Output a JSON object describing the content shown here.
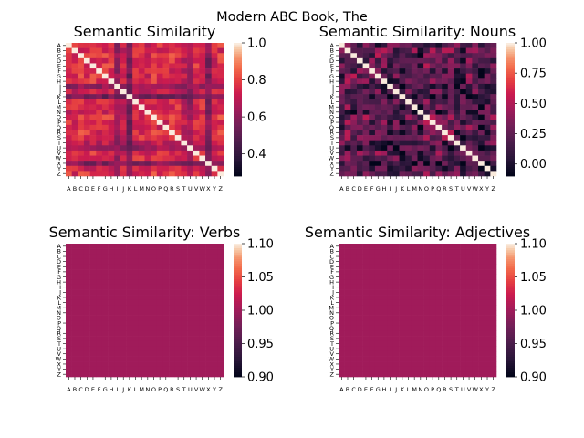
{
  "suptitle": "Modern ABC Book, The",
  "colors": {
    "colormap": "rocket",
    "background": "#ffffff",
    "diagonal": "#faebdd"
  },
  "chart_data": [
    {
      "type": "heatmap",
      "title": "Semantic Similarity",
      "xlabel": "",
      "ylabel": "",
      "x_tick_labels": [
        "A",
        "B",
        "C",
        "D",
        "E",
        "F",
        "G",
        "H",
        "I",
        "J",
        "K",
        "L",
        "M",
        "N",
        "O",
        "P",
        "Q",
        "R",
        "S",
        "T",
        "U",
        "V",
        "W",
        "X",
        "Y",
        "Z"
      ],
      "y_tick_labels": [
        "A",
        "B",
        "C",
        "D",
        "E",
        "F",
        "G",
        "H",
        "I",
        "J",
        "K",
        "L",
        "M",
        "N",
        "O",
        "P",
        "Q",
        "R",
        "S",
        "T",
        "U",
        "V",
        "W",
        "X",
        "Y",
        "Z"
      ],
      "colorbar_ticks": [
        "0.4",
        "0.6",
        "0.8",
        "1.0"
      ],
      "colorbar_tick_values": [
        0.4,
        0.6,
        0.8,
        1.0
      ],
      "vmin": 0.28,
      "vmax": 1.0,
      "diagonal_value": 1.0,
      "row_means": [
        0.78,
        0.74,
        0.8,
        0.77,
        0.79,
        0.75,
        0.8,
        0.78,
        0.62,
        0.72,
        0.55,
        0.77,
        0.76,
        0.73,
        0.8,
        0.77,
        0.74,
        0.79,
        0.76,
        0.7,
        0.63,
        0.78,
        0.76,
        0.58,
        0.74,
        0.8
      ],
      "grid": false,
      "legend": "colorbar-right"
    },
    {
      "type": "heatmap",
      "title": "Semantic Similarity: Nouns",
      "xlabel": "",
      "ylabel": "",
      "x_tick_labels": [
        "A",
        "B",
        "C",
        "D",
        "E",
        "F",
        "G",
        "H",
        "I",
        "J",
        "K",
        "L",
        "M",
        "N",
        "O",
        "P",
        "Q",
        "R",
        "S",
        "T",
        "U",
        "V",
        "W",
        "X",
        "Y",
        "Z"
      ],
      "y_tick_labels": [
        "A",
        "B",
        "C",
        "D",
        "E",
        "F",
        "G",
        "H",
        "I",
        "J",
        "K",
        "L",
        "M",
        "N",
        "O",
        "P",
        "Q",
        "R",
        "S",
        "T",
        "U",
        "V",
        "W",
        "X",
        "Y",
        "Z"
      ],
      "colorbar_ticks": [
        "0.00",
        "0.25",
        "0.50",
        "0.75",
        "1.00"
      ],
      "colorbar_tick_values": [
        0.0,
        0.25,
        0.5,
        0.75,
        1.0
      ],
      "vmin": -0.1,
      "vmax": 1.0,
      "diagonal_value": 1.0,
      "row_means": [
        0.2,
        0.3,
        0.35,
        0.28,
        0.4,
        0.25,
        0.33,
        0.3,
        0.15,
        0.22,
        0.1,
        0.3,
        0.25,
        0.12,
        0.38,
        0.3,
        0.28,
        0.35,
        0.3,
        0.18,
        0.12,
        0.3,
        0.28,
        0.08,
        0.2,
        0.3
      ],
      "grid": false,
      "legend": "colorbar-right"
    },
    {
      "type": "heatmap",
      "title": "Semantic Similarity: Verbs",
      "xlabel": "",
      "ylabel": "",
      "x_tick_labels": [
        "A",
        "B",
        "C",
        "D",
        "E",
        "F",
        "G",
        "H",
        "I",
        "J",
        "K",
        "L",
        "M",
        "N",
        "O",
        "P",
        "Q",
        "R",
        "S",
        "T",
        "U",
        "V",
        "W",
        "X",
        "Y",
        "Z"
      ],
      "y_tick_labels": [
        "A",
        "B",
        "C",
        "D",
        "E",
        "F",
        "G",
        "H",
        "I",
        "J",
        "K",
        "L",
        "M",
        "N",
        "O",
        "P",
        "Q",
        "R",
        "S",
        "T",
        "U",
        "V",
        "W",
        "X",
        "Y",
        "Z"
      ],
      "colorbar_ticks": [
        "0.90",
        "0.95",
        "1.00",
        "1.05",
        "1.10"
      ],
      "colorbar_tick_values": [
        0.9,
        0.95,
        1.0,
        1.05,
        1.1
      ],
      "vmin": 0.9,
      "vmax": 1.1,
      "uniform_value": 1.0,
      "grid": false,
      "legend": "colorbar-right"
    },
    {
      "type": "heatmap",
      "title": "Semantic Similarity: Adjectives",
      "xlabel": "",
      "ylabel": "",
      "x_tick_labels": [
        "A",
        "B",
        "C",
        "D",
        "E",
        "F",
        "G",
        "H",
        "I",
        "J",
        "K",
        "L",
        "M",
        "N",
        "O",
        "P",
        "Q",
        "R",
        "S",
        "T",
        "U",
        "V",
        "W",
        "X",
        "Y",
        "Z"
      ],
      "y_tick_labels": [
        "A",
        "B",
        "C",
        "D",
        "E",
        "F",
        "G",
        "H",
        "I",
        "J",
        "K",
        "L",
        "M",
        "N",
        "O",
        "P",
        "Q",
        "R",
        "S",
        "T",
        "U",
        "V",
        "W",
        "X",
        "Y",
        "Z"
      ],
      "colorbar_ticks": [
        "0.90",
        "0.95",
        "1.00",
        "1.05",
        "1.10"
      ],
      "colorbar_tick_values": [
        0.9,
        0.95,
        1.0,
        1.05,
        1.1
      ],
      "vmin": 0.9,
      "vmax": 1.1,
      "uniform_value": 1.0,
      "grid": false,
      "legend": "colorbar-right"
    }
  ]
}
